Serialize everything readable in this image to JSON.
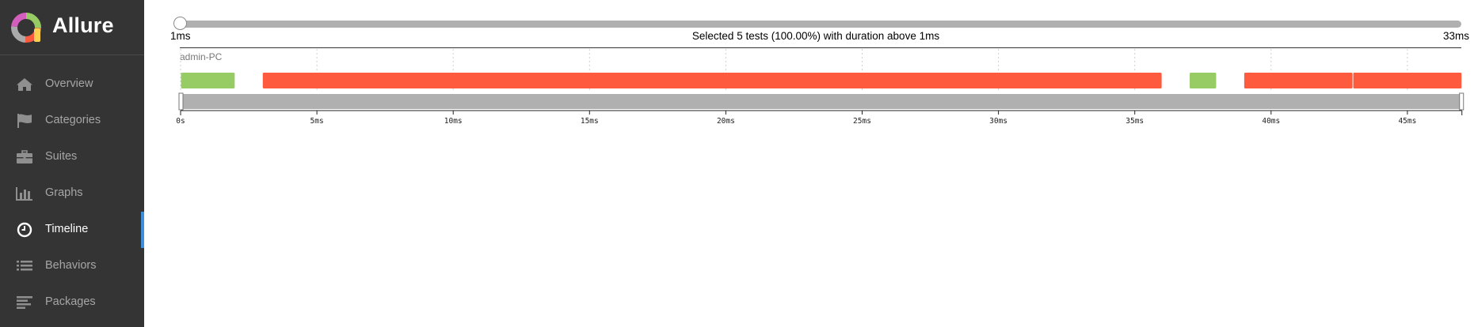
{
  "brand": {
    "name": "Allure"
  },
  "sidebar": {
    "items": [
      {
        "label": "Overview",
        "icon": "home-icon",
        "active": false
      },
      {
        "label": "Categories",
        "icon": "flag-icon",
        "active": false
      },
      {
        "label": "Suites",
        "icon": "briefcase-icon",
        "active": false
      },
      {
        "label": "Graphs",
        "icon": "bar-chart-icon",
        "active": false
      },
      {
        "label": "Timeline",
        "icon": "clock-icon",
        "active": true
      },
      {
        "label": "Behaviors",
        "icon": "list-icon",
        "active": false
      },
      {
        "label": "Packages",
        "icon": "align-left-icon",
        "active": false
      }
    ]
  },
  "duration_filter": {
    "min_label": "1ms",
    "max_label": "33ms",
    "selection_text": "Selected 5 tests (100.00%) with duration above 1ms",
    "value_fraction": 0
  },
  "timeline": {
    "host": "admin-PC",
    "axis_max_ms": 47,
    "ticks": [
      {
        "value": 0,
        "label": "0s"
      },
      {
        "value": 5,
        "label": "5ms"
      },
      {
        "value": 10,
        "label": "10ms"
      },
      {
        "value": 15,
        "label": "15ms"
      },
      {
        "value": 20,
        "label": "20ms"
      },
      {
        "value": 25,
        "label": "25ms"
      },
      {
        "value": 30,
        "label": "30ms"
      },
      {
        "value": 35,
        "label": "35ms"
      },
      {
        "value": 40,
        "label": "40ms"
      },
      {
        "value": 45,
        "label": "45ms"
      }
    ],
    "tests": [
      {
        "start": 0,
        "end": 2,
        "status": "passed"
      },
      {
        "start": 3,
        "end": 36,
        "status": "failed"
      },
      {
        "start": 37,
        "end": 38,
        "status": "passed"
      },
      {
        "start": 39,
        "end": 43,
        "status": "failed"
      },
      {
        "start": 43,
        "end": 47,
        "status": "failed"
      }
    ],
    "colors": {
      "passed": "#97cc64",
      "failed": "#fd5a3e",
      "brush": "#b0b0b0"
    }
  }
}
